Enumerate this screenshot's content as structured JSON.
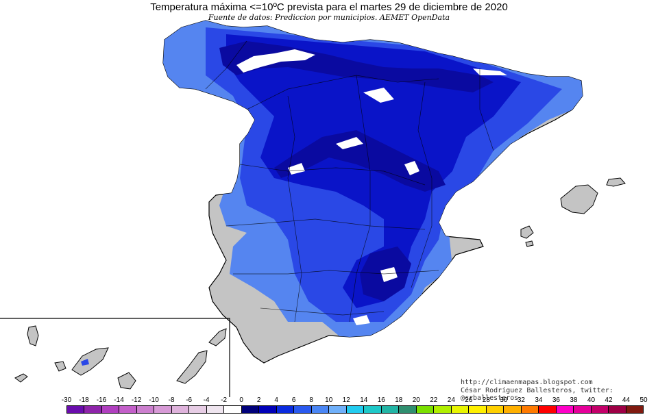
{
  "header": {
    "title": "Temperatura máxima <=10ºC prevista para el martes 29 de diciembre de 2020",
    "subtitle": "Fuente de datos: Prediccion por municipios. AEMET OpenData"
  },
  "credits": {
    "url": "http://climaenmapas.blogspot.com",
    "author": "César Rodríguez Ballesteros, twitter: @crballesteros"
  },
  "legend": {
    "labels": [
      "-30",
      "-18",
      "-16",
      "-14",
      "-12",
      "-10",
      "-8",
      "-6",
      "-4",
      "-2",
      "0",
      "2",
      "4",
      "6",
      "8",
      "10",
      "12",
      "14",
      "16",
      "18",
      "20",
      "22",
      "24",
      "26",
      "28",
      "30",
      "32",
      "34",
      "36",
      "38",
      "40",
      "42",
      "44",
      "50"
    ],
    "colors": [
      "#6a0dad",
      "#8e24aa",
      "#b03fbf",
      "#c35fc9",
      "#cc7fce",
      "#d79ad6",
      "#dfb3dc",
      "#e7cde5",
      "#efe5ef",
      "#ffffff",
      "#00007a",
      "#0000b8",
      "#0a2be0",
      "#2a5af0",
      "#4a86f5",
      "#6fb0fa",
      "#22ccf0",
      "#1ec9c9",
      "#22b5a5",
      "#2f8f6f",
      "#7ae000",
      "#b0ef00",
      "#e8f500",
      "#fff000",
      "#ffd000",
      "#ffb000",
      "#ff7a00",
      "#ff0000",
      "#ff00c8",
      "#e6009a",
      "#c4006a",
      "#9e0045",
      "#801a10"
    ],
    "colors_note": ""
  },
  "map": {
    "regions": [
      "peninsula",
      "balearic-islands",
      "canary-islands"
    ],
    "colors": {
      "above_threshold": "#c4c4c4",
      "cold": "#5585f0",
      "colder": "#2a48e6",
      "coldest": "#0a14c8",
      "very_cold": "#0a0aa0",
      "freezing": "#ffffff",
      "border": "#000000"
    }
  }
}
